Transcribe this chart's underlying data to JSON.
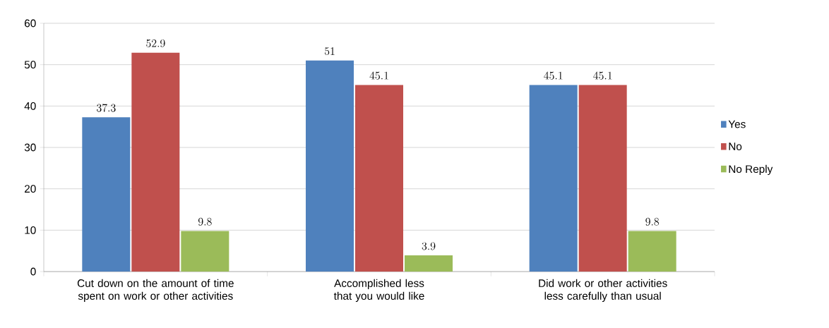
{
  "chart_data": {
    "type": "bar",
    "categories": [
      "Cut down on the amount of time spent on work or other activities",
      "Accomplished less that you would like",
      "Did work or other activities less carefully than usual"
    ],
    "series": [
      {
        "name": "Yes",
        "color": "#4f81bd",
        "values": [
          37.3,
          51,
          45.1
        ]
      },
      {
        "name": "No",
        "color": "#c0504d",
        "values": [
          52.9,
          45.1,
          45.1
        ]
      },
      {
        "name": "No Reply",
        "color": "#9bbb59",
        "values": [
          9.8,
          3.9,
          9.8
        ]
      }
    ],
    "ylim": [
      0,
      60
    ],
    "yticks": [
      0,
      10,
      20,
      30,
      40,
      50,
      60
    ],
    "grid": "y",
    "legend": "right",
    "data_labels": true
  }
}
